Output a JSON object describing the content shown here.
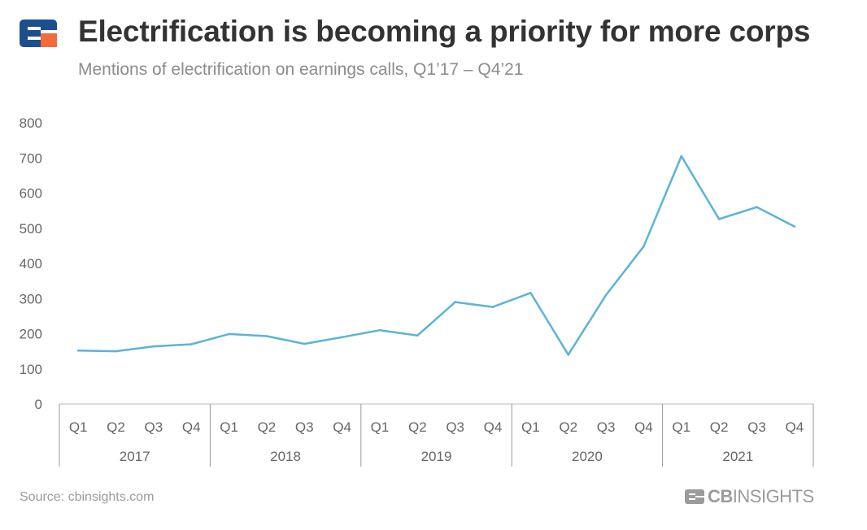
{
  "header": {
    "title": "Electrification is becoming a priority for more corps",
    "subtitle": "Mentions of electrification on earnings calls, Q1’17 – Q4’21"
  },
  "footer": {
    "source": "Source: cbinsights.com",
    "brand_bold": "CB",
    "brand_light": "INSIGHTS"
  },
  "colors": {
    "line": "#5ab4d6",
    "logo_blue": "#1d4e8f",
    "logo_orange": "#f26b3a",
    "axis_text": "#666666",
    "axis_line": "#999999"
  },
  "chart_data": {
    "type": "line",
    "title": "Electrification is becoming a priority for more corps",
    "subtitle": "Mentions of electrification on earnings calls, Q1’17 – Q4’21",
    "xlabel": "",
    "ylabel": "",
    "ylim": [
      0,
      800
    ],
    "yticks": [
      0,
      100,
      200,
      300,
      400,
      500,
      600,
      700,
      800
    ],
    "grid": false,
    "legend": "none",
    "categories": [
      "Q1",
      "Q2",
      "Q3",
      "Q4",
      "Q1",
      "Q2",
      "Q3",
      "Q4",
      "Q1",
      "Q2",
      "Q3",
      "Q4",
      "Q1",
      "Q2",
      "Q3",
      "Q4",
      "Q1",
      "Q2",
      "Q3",
      "Q4"
    ],
    "groups": [
      {
        "label": "2017",
        "count": 4
      },
      {
        "label": "2018",
        "count": 4
      },
      {
        "label": "2019",
        "count": 4
      },
      {
        "label": "2020",
        "count": 4
      },
      {
        "label": "2021",
        "count": 4
      }
    ],
    "series": [
      {
        "values": [
          152,
          150,
          164,
          170,
          199,
          193,
          171,
          190,
          210,
          195,
          290,
          276,
          316,
          140,
          310,
          448,
          705,
          526,
          560,
          505
        ]
      }
    ]
  }
}
